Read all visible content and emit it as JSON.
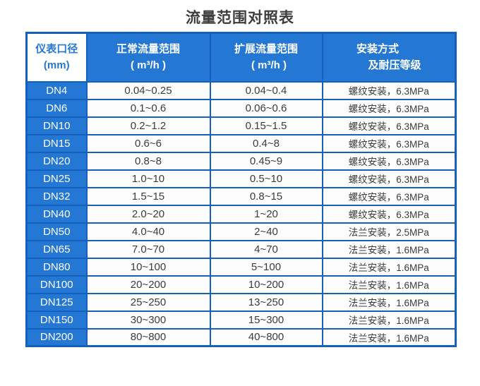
{
  "page": {
    "title": "流量范围对照表"
  },
  "colors": {
    "blue_fill": "#2478d3",
    "blue_border": "#1560bd",
    "cell_bg": "#fdfdfe",
    "text_dark": "#3b3b3b",
    "title_color": "#3d3d3d",
    "page_bg": "#ffffff"
  },
  "table": {
    "headers": {
      "diameter": {
        "line1": "仪表口径",
        "line2": "(mm)"
      },
      "normal": {
        "line1": "正常流量范围",
        "line2": "( m³/h )"
      },
      "extended": {
        "line1": "扩展流量范围",
        "line2": "( m³/h )"
      },
      "install": {
        "line1": "安装方式",
        "line2": "及耐压等级"
      }
    },
    "rows": [
      {
        "dn": "DN4",
        "normal": "0.04~0.25",
        "extended": "0.04~0.4",
        "install": "螺纹安装，6.3MPa"
      },
      {
        "dn": "DN6",
        "normal": "0.1~0.6",
        "extended": "0.06~0.6",
        "install": "螺纹安装，6.3MPa"
      },
      {
        "dn": "DN10",
        "normal": "0.2~1.2",
        "extended": "0.15~1.5",
        "install": "螺纹安装，6.3MPa"
      },
      {
        "dn": "DN15",
        "normal": "0.6~6",
        "extended": "0.4~8",
        "install": "螺纹安装，6.3MPa"
      },
      {
        "dn": "DN20",
        "normal": "0.8~8",
        "extended": "0.45~9",
        "install": "螺纹安装，6.3MPa"
      },
      {
        "dn": "DN25",
        "normal": "1.0~10",
        "extended": "0.5~10",
        "install": "螺纹安装，6.3MPa"
      },
      {
        "dn": "DN32",
        "normal": "1.5~15",
        "extended": "0.8~15",
        "install": "螺纹安装，6.3MPa"
      },
      {
        "dn": "DN40",
        "normal": "2.0~20",
        "extended": "1~20",
        "install": "螺纹安装，6.3MPa"
      },
      {
        "dn": "DN50",
        "normal": "4.0~40",
        "extended": "2~40",
        "install": "法兰安装，2.5MPa"
      },
      {
        "dn": "DN65",
        "normal": "7.0~70",
        "extended": "4~70",
        "install": "法兰安装，1.6MPa"
      },
      {
        "dn": "DN80",
        "normal": "10~100",
        "extended": "5~100",
        "install": "法兰安装，1.6MPa"
      },
      {
        "dn": "DN100",
        "normal": "20~200",
        "extended": "10~200",
        "install": "法兰安装，1.6MPa"
      },
      {
        "dn": "DN125",
        "normal": "25~250",
        "extended": "13~250",
        "install": "法兰安装，1.6MPa"
      },
      {
        "dn": "DN150",
        "normal": "30~300",
        "extended": "15~300",
        "install": "法兰安装，1.6MPa"
      },
      {
        "dn": "DN200",
        "normal": "80~800",
        "extended": "40~800",
        "install": "法兰安装，1.6MPa"
      }
    ]
  }
}
